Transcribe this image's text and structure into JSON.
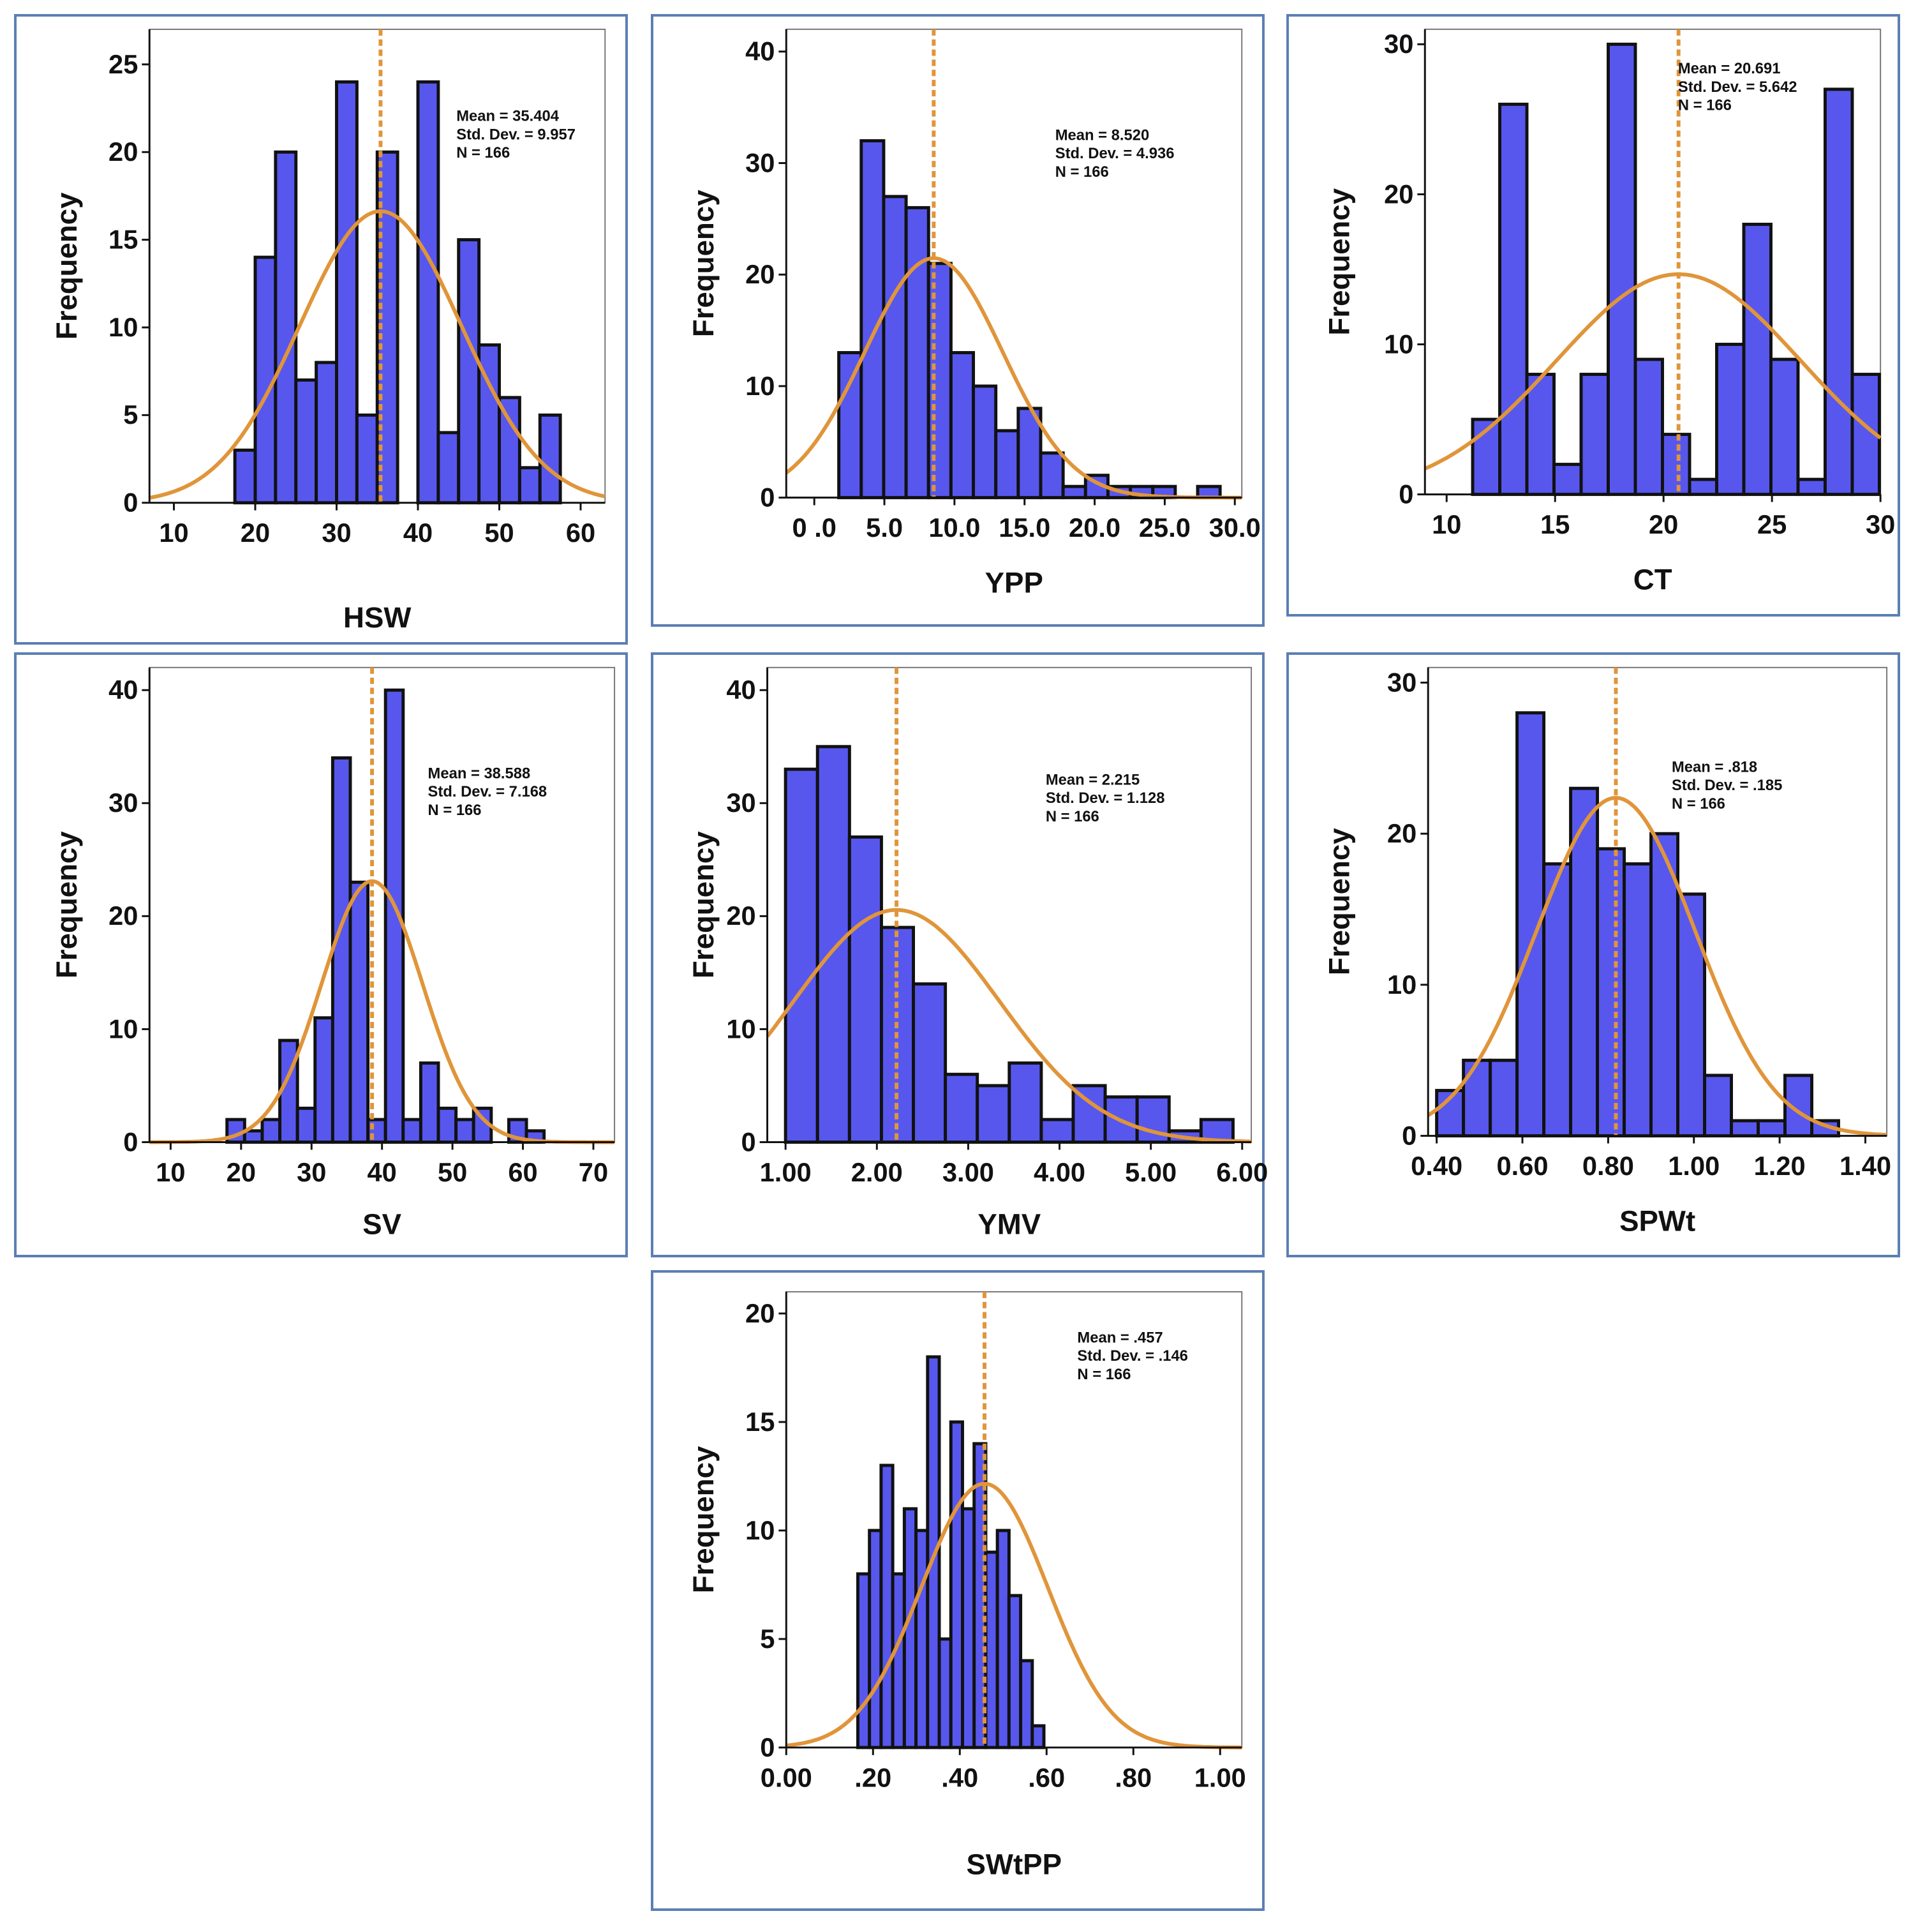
{
  "colors": {
    "bar": "#5757ee",
    "bar_edge": "#111111",
    "curve": "#e0953a",
    "mean_line": "#e0953a",
    "panel_border": "#5b7fb3"
  },
  "chart_data": [
    {
      "type": "bar",
      "id": "hsw",
      "title": "",
      "xlabel": "HSW",
      "ylabel": "Frequency",
      "xlim": [
        7,
        63
      ],
      "ylim": [
        0,
        27
      ],
      "xticks": [
        {
          "v": 10,
          "label": "10"
        },
        {
          "v": 20,
          "label": "20"
        },
        {
          "v": 30,
          "label": "30"
        },
        {
          "v": 40,
          "label": "40"
        },
        {
          "v": 50,
          "label": "50"
        },
        {
          "v": 60,
          "label": "60"
        }
      ],
      "yticks": [
        {
          "v": 0,
          "label": "0"
        },
        {
          "v": 5,
          "label": "5"
        },
        {
          "v": 10,
          "label": "10"
        },
        {
          "v": 15,
          "label": "15"
        },
        {
          "v": 20,
          "label": "20"
        },
        {
          "v": 25,
          "label": "25"
        }
      ],
      "bin_start": 17.5,
      "bin_width": 2.5,
      "values": [
        3,
        14,
        20,
        7,
        8,
        24,
        5,
        20,
        0,
        24,
        4,
        15,
        9,
        6,
        2,
        5
      ],
      "mean": 35.404,
      "std": 9.957,
      "n": 166,
      "stats": [
        "Mean = 35.404",
        "Std. Dev. = 9.957",
        "N = 166"
      ]
    },
    {
      "type": "bar",
      "id": "ypp",
      "title": "",
      "xlabel": "YPP",
      "ylabel": "Frequency",
      "xlim": [
        -2,
        30.5
      ],
      "ylim": [
        0,
        42
      ],
      "xticks": [
        {
          "v": 0,
          "label": "0 .0"
        },
        {
          "v": 5,
          "label": "5.0"
        },
        {
          "v": 10,
          "label": "10.0"
        },
        {
          "v": 15,
          "label": "15.0"
        },
        {
          "v": 20,
          "label": "20.0"
        },
        {
          "v": 25,
          "label": "25.0"
        },
        {
          "v": 30,
          "label": "30.0"
        }
      ],
      "yticks": [
        {
          "v": 0,
          "label": "0"
        },
        {
          "v": 10,
          "label": "10"
        },
        {
          "v": 20,
          "label": "20"
        },
        {
          "v": 30,
          "label": "30"
        },
        {
          "v": 40,
          "label": "40"
        }
      ],
      "bin_start": 1.75,
      "bin_width": 1.6,
      "values": [
        13,
        32,
        27,
        26,
        21,
        13,
        10,
        6,
        8,
        4,
        1,
        2,
        1,
        1,
        1,
        0,
        1
      ],
      "mean": 8.52,
      "std": 4.936,
      "n": 166,
      "stats": [
        "Mean = 8.520",
        "Std. Dev. = 4.936",
        "N = 166"
      ]
    },
    {
      "type": "bar",
      "id": "ct",
      "title": "",
      "xlabel": "CT",
      "ylabel": "Frequency",
      "xlim": [
        9,
        30
      ],
      "ylim": [
        0,
        31
      ],
      "xticks": [
        {
          "v": 10,
          "label": "10"
        },
        {
          "v": 15,
          "label": "15"
        },
        {
          "v": 20,
          "label": "20"
        },
        {
          "v": 25,
          "label": "25"
        },
        {
          "v": 30,
          "label": "30"
        }
      ],
      "yticks": [
        {
          "v": 0,
          "label": "0"
        },
        {
          "v": 10,
          "label": "10"
        },
        {
          "v": 20,
          "label": "20"
        },
        {
          "v": 30,
          "label": "30"
        }
      ],
      "bin_start": 11.2,
      "bin_width": 1.25,
      "values": [
        5,
        26,
        8,
        2,
        8,
        30,
        9,
        4,
        1,
        10,
        18,
        9,
        1,
        27,
        8
      ],
      "mean": 20.691,
      "std": 5.642,
      "n": 166,
      "stats": [
        "Mean = 20.691",
        "Std. Dev. = 5.642",
        "N = 166"
      ]
    },
    {
      "type": "bar",
      "id": "sv",
      "title": "",
      "xlabel": "SV",
      "ylabel": "Frequency",
      "xlim": [
        7,
        73
      ],
      "ylim": [
        0,
        42
      ],
      "xticks": [
        {
          "v": 10,
          "label": "10"
        },
        {
          "v": 20,
          "label": "20"
        },
        {
          "v": 30,
          "label": "30"
        },
        {
          "v": 40,
          "label": "40"
        },
        {
          "v": 50,
          "label": "50"
        },
        {
          "v": 60,
          "label": "60"
        },
        {
          "v": 70,
          "label": "70"
        }
      ],
      "yticks": [
        {
          "v": 0,
          "label": "0"
        },
        {
          "v": 10,
          "label": "10"
        },
        {
          "v": 20,
          "label": "20"
        },
        {
          "v": 30,
          "label": "30"
        },
        {
          "v": 40,
          "label": "40"
        }
      ],
      "bin_start": 18,
      "bin_width": 2.5,
      "values": [
        2,
        1,
        2,
        9,
        3,
        11,
        34,
        23,
        2,
        40,
        2,
        7,
        3,
        2,
        3,
        0,
        2,
        1
      ],
      "mean": 38.588,
      "std": 7.168,
      "n": 166,
      "stats": [
        "Mean = 38.588",
        "Std. Dev. = 7.168",
        "N = 166"
      ]
    },
    {
      "type": "bar",
      "id": "ymv",
      "title": "",
      "xlabel": "YMV",
      "ylabel": "Frequency",
      "xlim": [
        0.8,
        6.1
      ],
      "ylim": [
        0,
        42
      ],
      "xticks": [
        {
          "v": 1,
          "label": "1.00"
        },
        {
          "v": 2,
          "label": "2.00"
        },
        {
          "v": 3,
          "label": "3.00"
        },
        {
          "v": 4,
          "label": "4.00"
        },
        {
          "v": 5,
          "label": "5.00"
        },
        {
          "v": 6,
          "label": "6.00"
        }
      ],
      "yticks": [
        {
          "v": 0,
          "label": "0"
        },
        {
          "v": 10,
          "label": "10"
        },
        {
          "v": 20,
          "label": "20"
        },
        {
          "v": 30,
          "label": "30"
        },
        {
          "v": 40,
          "label": "40"
        }
      ],
      "bin_start": 1.0,
      "bin_width": 0.35,
      "values": [
        33,
        35,
        27,
        19,
        14,
        6,
        5,
        7,
        2,
        5,
        4,
        4,
        1,
        2
      ],
      "mean": 2.215,
      "std": 1.128,
      "n": 166,
      "stats": [
        "Mean = 2.215",
        "Std. Dev. = 1.128",
        "N = 166"
      ]
    },
    {
      "type": "bar",
      "id": "spwt",
      "title": "",
      "xlabel": "SPWt",
      "ylabel": "Frequency",
      "xlim": [
        0.38,
        1.45
      ],
      "ylim": [
        0,
        31
      ],
      "xticks": [
        {
          "v": 0.4,
          "label": "0.40"
        },
        {
          "v": 0.6,
          "label": "0.60"
        },
        {
          "v": 0.8,
          "label": "0.80"
        },
        {
          "v": 1.0,
          "label": "1.00"
        },
        {
          "v": 1.2,
          "label": "1.20"
        },
        {
          "v": 1.4,
          "label": "1.40"
        }
      ],
      "yticks": [
        {
          "v": 0,
          "label": "0"
        },
        {
          "v": 10,
          "label": "10"
        },
        {
          "v": 20,
          "label": "20"
        },
        {
          "v": 30,
          "label": "30"
        }
      ],
      "bin_start": 0.4,
      "bin_width": 0.0625,
      "values": [
        3,
        5,
        5,
        28,
        18,
        23,
        19,
        18,
        20,
        16,
        4,
        1,
        1,
        4,
        1
      ],
      "mean": 0.818,
      "std": 0.185,
      "n": 166,
      "stats": [
        "Mean = .818",
        "Std. Dev. = .185",
        "N = 166"
      ]
    },
    {
      "type": "bar",
      "id": "swtpp",
      "title": "",
      "xlabel": "SWtPP",
      "ylabel": "Frequency",
      "xlim": [
        0,
        1.05
      ],
      "ylim": [
        0,
        21
      ],
      "xticks": [
        {
          "v": 0,
          "label": "0.00"
        },
        {
          "v": 0.2,
          "label": ".20"
        },
        {
          "v": 0.4,
          "label": ".40"
        },
        {
          "v": 0.6,
          "label": ".60"
        },
        {
          "v": 0.8,
          "label": ".80"
        },
        {
          "v": 1.0,
          "label": "1.00"
        }
      ],
      "yticks": [
        {
          "v": 0,
          "label": "0"
        },
        {
          "v": 5,
          "label": "5"
        },
        {
          "v": 10,
          "label": "10"
        },
        {
          "v": 15,
          "label": "15"
        },
        {
          "v": 20,
          "label": "20"
        }
      ],
      "bin_start": 0.165,
      "bin_width": 0.0268,
      "values": [
        8,
        10,
        13,
        8,
        11,
        10,
        18,
        5,
        15,
        11,
        14,
        9,
        10,
        7,
        4,
        1
      ],
      "mean": 0.457,
      "std": 0.146,
      "n": 166,
      "stats": [
        "Mean = .457",
        "Std. Dev. = .146",
        "N = 166"
      ]
    }
  ]
}
